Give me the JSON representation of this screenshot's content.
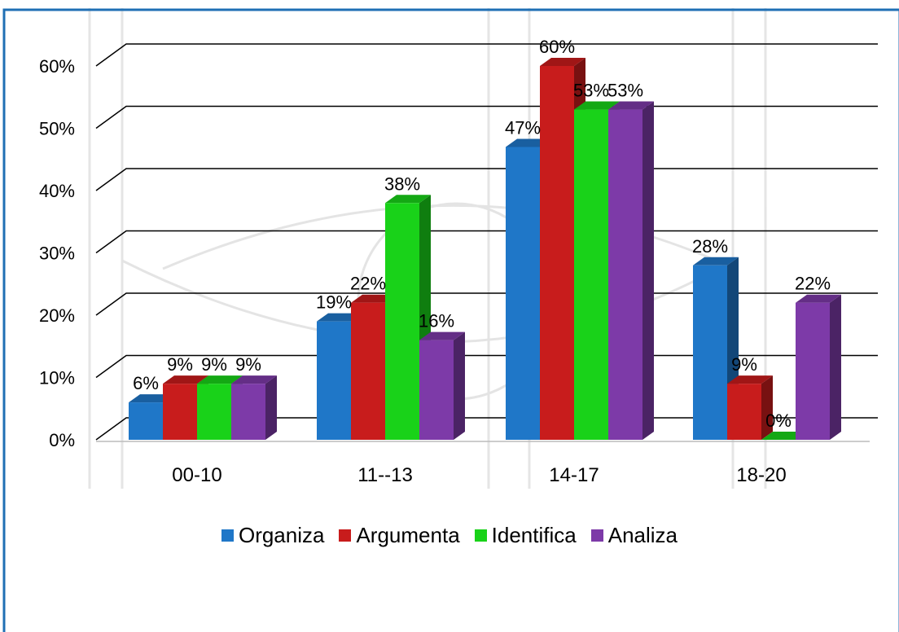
{
  "colors": {
    "border": "#1f6fb4",
    "series": [
      "#1f77c8",
      "#c81c1c",
      "#19d219",
      "#7d3aa8"
    ]
  },
  "chart_data": {
    "type": "bar",
    "categories": [
      "00-10",
      "11--13",
      "14-17",
      "18-20"
    ],
    "series": [
      {
        "name": "Organiza",
        "values": [
          6,
          19,
          47,
          28
        ]
      },
      {
        "name": "Argumenta",
        "values": [
          9,
          22,
          60,
          9
        ]
      },
      {
        "name": "Identifica",
        "values": [
          9,
          38,
          53,
          0
        ]
      },
      {
        "name": "Analiza",
        "values": [
          9,
          16,
          53,
          22
        ]
      }
    ],
    "ylim": [
      0,
      60
    ],
    "yticks": [
      "0%",
      "10%",
      "20%",
      "30%",
      "40%",
      "50%",
      "60%"
    ],
    "value_suffix": "%",
    "grid": true,
    "legend_position": "bottom",
    "style": "3d-clustered-column"
  }
}
